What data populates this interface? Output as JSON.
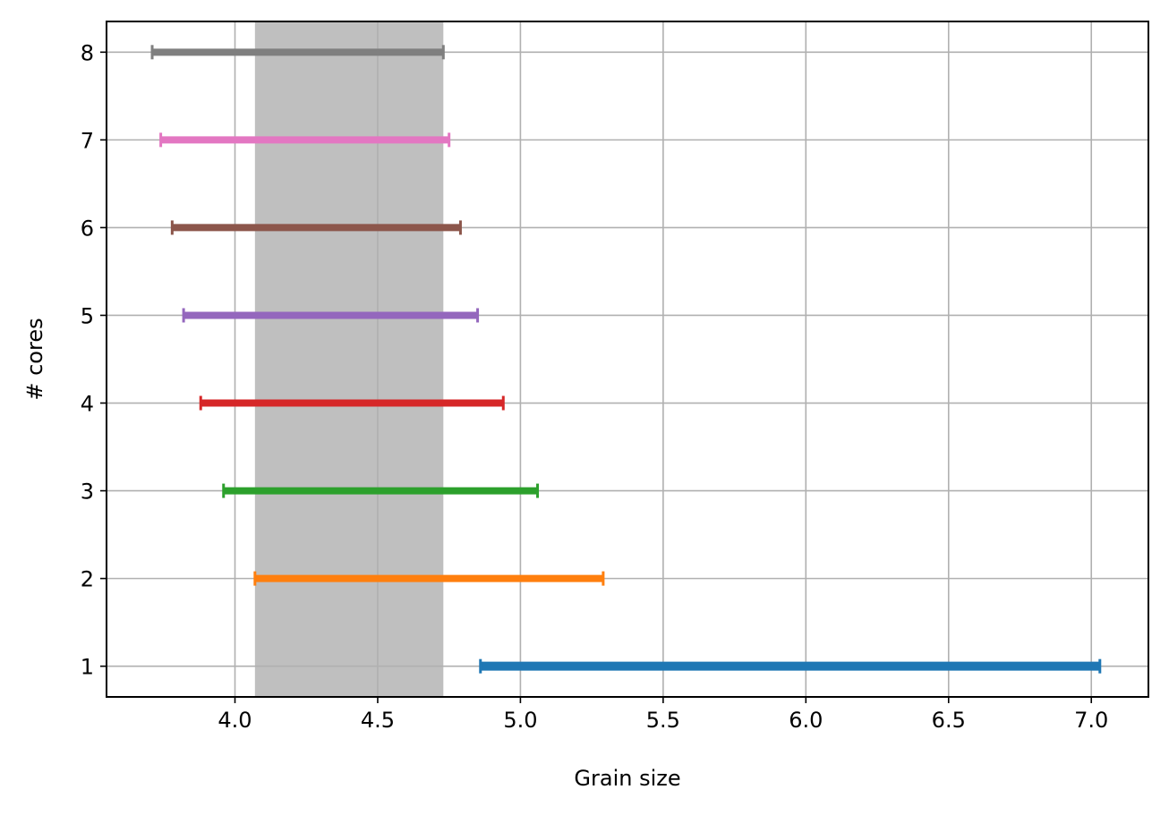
{
  "chart_data": {
    "type": "range",
    "xlabel": "Grain size",
    "ylabel": "# cores",
    "xlim": [
      3.55,
      7.2
    ],
    "ylim": [
      0.65,
      8.35
    ],
    "xticks": [
      4.0,
      4.5,
      5.0,
      5.5,
      6.0,
      6.5,
      7.0
    ],
    "xtick_labels": [
      "4.0",
      "4.5",
      "5.0",
      "5.5",
      "6.0",
      "6.5",
      "7.0"
    ],
    "yticks": [
      1,
      2,
      3,
      4,
      5,
      6,
      7,
      8
    ],
    "ytick_labels": [
      "1",
      "2",
      "3",
      "4",
      "5",
      "6",
      "7",
      "8"
    ],
    "grid": true,
    "shaded_band": {
      "x_start": 4.07,
      "x_end": 4.73,
      "color": "#bfbfbf"
    },
    "ranges": [
      {
        "y": 1,
        "x_start": 4.86,
        "x_end": 7.03,
        "color": "#1f77b4"
      },
      {
        "y": 2,
        "x_start": 4.07,
        "x_end": 5.29,
        "color": "#ff7f0e"
      },
      {
        "y": 3,
        "x_start": 3.96,
        "x_end": 5.06,
        "color": "#2ca02c"
      },
      {
        "y": 4,
        "x_start": 3.88,
        "x_end": 4.94,
        "color": "#d62728"
      },
      {
        "y": 5,
        "x_start": 3.82,
        "x_end": 4.85,
        "color": "#9467bd"
      },
      {
        "y": 6,
        "x_start": 3.78,
        "x_end": 4.79,
        "color": "#8c564b"
      },
      {
        "y": 7,
        "x_start": 3.74,
        "x_end": 4.75,
        "color": "#e377c2"
      },
      {
        "y": 8,
        "x_start": 3.71,
        "x_end": 4.73,
        "color": "#7f7f7f"
      }
    ]
  }
}
